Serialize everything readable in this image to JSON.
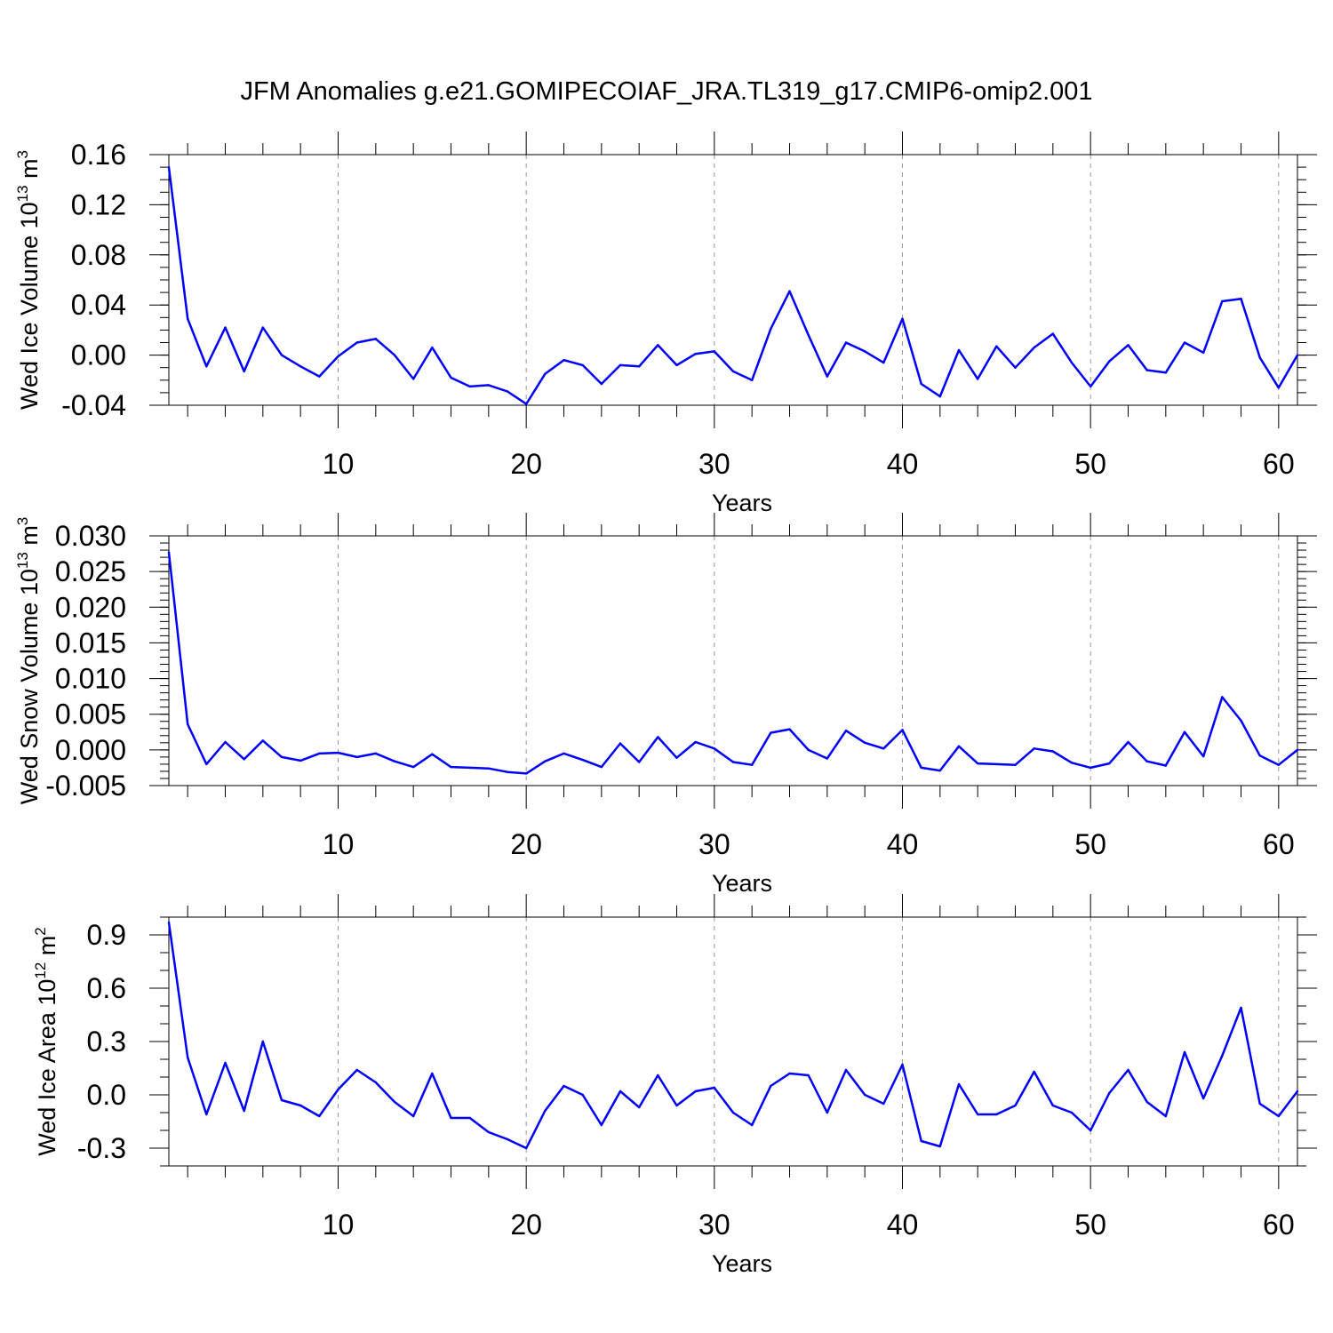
{
  "title": "JFM Anomalies g.e21.GOMIPECOIAF_JRA.TL319_g17.CMIP6-omip2.001",
  "colors": {
    "series": "#0000ff",
    "axes": "#000000",
    "grid": "#999999"
  },
  "chart_data": [
    {
      "type": "line",
      "xlabel": "Years",
      "ylabel": {
        "prefix": "Wed Ice Volume 10",
        "exponent": "13",
        "unit": " m",
        "unit_exponent": "3"
      },
      "xlim": [
        1,
        61
      ],
      "ylim": [
        -0.04,
        0.16
      ],
      "xticks": [
        10,
        20,
        30,
        40,
        50,
        60
      ],
      "xtick_labels": [
        "10",
        "20",
        "30",
        "40",
        "50",
        "60"
      ],
      "yticks": [
        -0.04,
        0.0,
        0.04,
        0.08,
        0.12,
        0.16
      ],
      "ytick_labels": [
        "-0.04",
        "0.00",
        "0.04",
        "0.08",
        "0.12",
        "0.16"
      ],
      "yminor": 0.01,
      "x": [
        1,
        2,
        3,
        4,
        5,
        6,
        7,
        8,
        9,
        10,
        11,
        12,
        13,
        14,
        15,
        16,
        17,
        18,
        19,
        20,
        21,
        22,
        23,
        24,
        25,
        26,
        27,
        28,
        29,
        30,
        31,
        32,
        33,
        34,
        35,
        36,
        37,
        38,
        39,
        40,
        41,
        42,
        43,
        44,
        45,
        46,
        47,
        48,
        49,
        50,
        51,
        52,
        53,
        54,
        55,
        56,
        57,
        58,
        59,
        60,
        61
      ],
      "y": [
        0.15,
        0.029,
        -0.009,
        0.022,
        -0.013,
        0.022,
        0.0,
        -0.009,
        -0.017,
        -0.001,
        0.01,
        0.013,
        0.0,
        -0.019,
        0.006,
        -0.018,
        -0.025,
        -0.024,
        -0.029,
        -0.039,
        -0.015,
        -0.004,
        -0.008,
        -0.023,
        -0.008,
        -0.009,
        0.008,
        -0.008,
        0.001,
        0.003,
        -0.013,
        -0.02,
        0.021,
        0.051,
        0.016,
        -0.017,
        0.01,
        0.003,
        -0.006,
        0.029,
        -0.023,
        -0.033,
        0.004,
        -0.019,
        0.007,
        -0.01,
        0.006,
        0.017,
        -0.006,
        -0.025,
        -0.005,
        0.008,
        -0.012,
        -0.014,
        0.01,
        0.002,
        0.043,
        0.045,
        -0.002,
        -0.026,
        0.0
      ]
    },
    {
      "type": "line",
      "xlabel": "Years",
      "ylabel": {
        "prefix": "Wed Snow Volume 10",
        "exponent": "13",
        "unit": " m",
        "unit_exponent": "3"
      },
      "xlim": [
        1,
        61
      ],
      "ylim": [
        -0.005,
        0.03
      ],
      "xticks": [
        10,
        20,
        30,
        40,
        50,
        60
      ],
      "xtick_labels": [
        "10",
        "20",
        "30",
        "40",
        "50",
        "60"
      ],
      "yticks": [
        -0.005,
        0.0,
        0.005,
        0.01,
        0.015,
        0.02,
        0.025,
        0.03
      ],
      "ytick_labels": [
        "-0.005",
        "0.000",
        "0.005",
        "0.010",
        "0.015",
        "0.020",
        "0.025",
        "0.030"
      ],
      "yminor": 0.001,
      "x": [
        1,
        2,
        3,
        4,
        5,
        6,
        7,
        8,
        9,
        10,
        11,
        12,
        13,
        14,
        15,
        16,
        17,
        18,
        19,
        20,
        21,
        22,
        23,
        24,
        25,
        26,
        27,
        28,
        29,
        30,
        31,
        32,
        33,
        34,
        35,
        36,
        37,
        38,
        39,
        40,
        41,
        42,
        43,
        44,
        45,
        46,
        47,
        48,
        49,
        50,
        51,
        52,
        53,
        54,
        55,
        56,
        57,
        58,
        59,
        60,
        61
      ],
      "y": [
        0.0277,
        0.0036,
        -0.002,
        0.0011,
        -0.0013,
        0.0013,
        -0.001,
        -0.0015,
        -0.0005,
        -0.0004,
        -0.001,
        -0.0005,
        -0.0016,
        -0.0024,
        -0.0006,
        -0.0024,
        -0.0025,
        -0.0026,
        -0.0031,
        -0.0033,
        -0.0016,
        -0.0005,
        -0.0014,
        -0.0024,
        0.0009,
        -0.0017,
        0.0018,
        -0.0011,
        0.0011,
        0.0002,
        -0.0017,
        -0.0021,
        0.0024,
        0.0029,
        0.0,
        -0.0012,
        0.0027,
        0.001,
        0.0002,
        0.0028,
        -0.0025,
        -0.0029,
        0.0005,
        -0.0019,
        -0.002,
        -0.0021,
        0.0002,
        -0.0002,
        -0.0018,
        -0.0025,
        -0.0019,
        0.0011,
        -0.0016,
        -0.0022,
        0.0025,
        -0.0009,
        0.0074,
        0.0041,
        -0.0008,
        -0.0021,
        0.0
      ]
    },
    {
      "type": "line",
      "xlabel": "Years",
      "ylabel": {
        "prefix": "Wed Ice Area 10",
        "exponent": "12",
        "unit": " m",
        "unit_exponent": "2"
      },
      "xlim": [
        1,
        61
      ],
      "ylim": [
        -0.4,
        1.0
      ],
      "xticks": [
        10,
        20,
        30,
        40,
        50,
        60
      ],
      "xtick_labels": [
        "10",
        "20",
        "30",
        "40",
        "50",
        "60"
      ],
      "yticks": [
        -0.3,
        0.0,
        0.3,
        0.6,
        0.9
      ],
      "ytick_labels": [
        "-0.3",
        "0.0",
        "0.3",
        "0.6",
        "0.9"
      ],
      "yminor": 0.1,
      "x": [
        1,
        2,
        3,
        4,
        5,
        6,
        7,
        8,
        9,
        10,
        11,
        12,
        13,
        14,
        15,
        16,
        17,
        18,
        19,
        20,
        21,
        22,
        23,
        24,
        25,
        26,
        27,
        28,
        29,
        30,
        31,
        32,
        33,
        34,
        35,
        36,
        37,
        38,
        39,
        40,
        41,
        42,
        43,
        44,
        45,
        46,
        47,
        48,
        49,
        50,
        51,
        52,
        53,
        54,
        55,
        56,
        57,
        58,
        59,
        60,
        61
      ],
      "y": [
        0.97,
        0.21,
        -0.11,
        0.18,
        -0.09,
        0.3,
        -0.03,
        -0.06,
        -0.12,
        0.03,
        0.14,
        0.07,
        -0.04,
        -0.12,
        0.12,
        -0.13,
        -0.13,
        -0.21,
        -0.25,
        -0.3,
        -0.09,
        0.05,
        0.0,
        -0.17,
        0.02,
        -0.07,
        0.11,
        -0.06,
        0.02,
        0.04,
        -0.1,
        -0.17,
        0.05,
        0.12,
        0.11,
        -0.1,
        0.14,
        0.0,
        -0.05,
        0.17,
        -0.26,
        -0.29,
        0.06,
        -0.11,
        -0.11,
        -0.06,
        0.13,
        -0.06,
        -0.1,
        -0.2,
        0.01,
        0.14,
        -0.04,
        -0.12,
        0.24,
        -0.02,
        0.22,
        0.49,
        -0.05,
        -0.12,
        0.02
      ]
    }
  ]
}
